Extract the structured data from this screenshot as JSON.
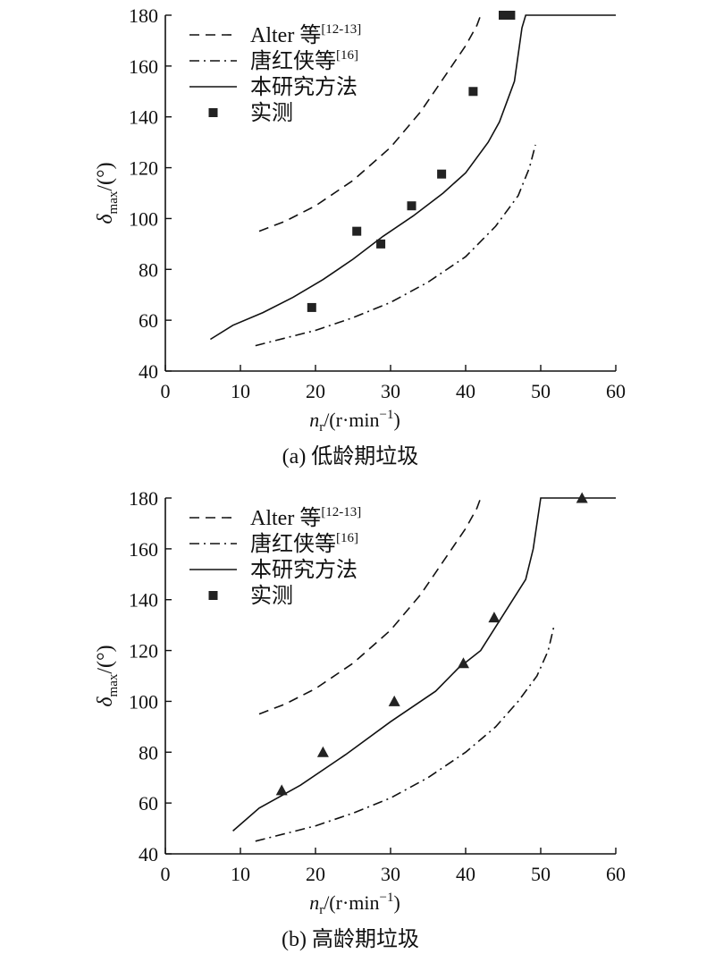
{
  "legend": {
    "alter": {
      "main": "Alter 等",
      "sup": "[12-13]"
    },
    "tang": {
      "main": "唐红侠等",
      "sup": "[16]"
    },
    "method": {
      "main": "本研究方法",
      "sup": ""
    },
    "measured": {
      "main": "实测",
      "sup": ""
    }
  },
  "chart_data": [
    {
      "type": "line",
      "caption": "(a) 低龄期垃圾",
      "xlabel": {
        "main": "n",
        "sub": "r",
        "rest": "/(r·min",
        "sup": "−1",
        "end": ")"
      },
      "ylabel": {
        "main": "δ",
        "sub": "max",
        "rest": "/(°)"
      },
      "xlim": [
        0,
        60
      ],
      "ylim": [
        40,
        180
      ],
      "xticks": [
        0,
        10,
        20,
        30,
        40,
        50,
        60
      ],
      "yticks": [
        40,
        60,
        80,
        100,
        120,
        140,
        160,
        180
      ],
      "legend_position": "top-left",
      "series": [
        {
          "name": "Alter 等[12-13]",
          "style": "dashed",
          "x": [
            12.5,
            16,
            20,
            25,
            30,
            34,
            37,
            40,
            41.5,
            42
          ],
          "y": [
            95,
            99,
            105,
            115,
            128,
            142,
            155,
            168,
            176,
            180
          ]
        },
        {
          "name": "唐红侠等[16]",
          "style": "dashdot",
          "x": [
            12,
            16,
            20,
            25,
            30,
            35,
            40,
            44,
            47,
            48.5,
            49.3
          ],
          "y": [
            50,
            53,
            56,
            61,
            67,
            75,
            85,
            97,
            109,
            120,
            129
          ]
        },
        {
          "name": "本研究方法",
          "style": "solid",
          "x": [
            6,
            9,
            13,
            17,
            21,
            25,
            29,
            33,
            37,
            40,
            43,
            44.5,
            45.5,
            46.5,
            47.5,
            48,
            60
          ],
          "y": [
            52.5,
            58,
            63,
            69,
            76,
            84,
            93,
            101,
            110,
            118,
            130,
            138,
            146,
            154,
            175,
            180,
            180
          ]
        },
        {
          "name": "实测",
          "style": "square",
          "x": [
            19.5,
            25.5,
            28.7,
            32.8,
            36.8,
            41,
            45,
            46
          ],
          "y": [
            65,
            95,
            90,
            105,
            117.5,
            150,
            180,
            180
          ]
        }
      ]
    },
    {
      "type": "line",
      "caption": "(b) 高龄期垃圾",
      "xlabel": {
        "main": "n",
        "sub": "r",
        "rest": "/(r·min",
        "sup": "−1",
        "end": ")"
      },
      "ylabel": {
        "main": "δ",
        "sub": "max",
        "rest": "/(°)"
      },
      "xlim": [
        0,
        60
      ],
      "ylim": [
        40,
        180
      ],
      "xticks": [
        0,
        10,
        20,
        30,
        40,
        50,
        60
      ],
      "yticks": [
        40,
        60,
        80,
        100,
        120,
        140,
        160,
        180
      ],
      "legend_position": "top-left",
      "series": [
        {
          "name": "Alter 等[12-13]",
          "style": "dashed",
          "x": [
            12.5,
            16,
            20,
            25,
            30,
            34,
            37,
            40,
            41.5,
            42
          ],
          "y": [
            95,
            99,
            105,
            115,
            128,
            142,
            155,
            168,
            176,
            180
          ]
        },
        {
          "name": "唐红侠等[16]",
          "style": "dashdot",
          "x": [
            12,
            16,
            20,
            25,
            30,
            35,
            40,
            44,
            47,
            49.5,
            51,
            51.8
          ],
          "y": [
            45,
            48,
            51,
            56,
            62,
            70,
            80,
            90,
            100,
            110,
            120,
            130
          ]
        },
        {
          "name": "本研究方法",
          "style": "solid",
          "x": [
            9,
            12.5,
            18,
            24,
            30,
            36,
            39,
            42,
            45,
            48,
            49,
            50,
            60
          ],
          "y": [
            49,
            58,
            67,
            79,
            92,
            104,
            113,
            120,
            134,
            148,
            160,
            180,
            180
          ]
        },
        {
          "name": "实测",
          "style": "triangle",
          "x": [
            15.5,
            21,
            30.5,
            39.7,
            43.8,
            55.5
          ],
          "y": [
            65,
            80,
            100,
            115,
            133,
            180
          ]
        }
      ]
    }
  ]
}
